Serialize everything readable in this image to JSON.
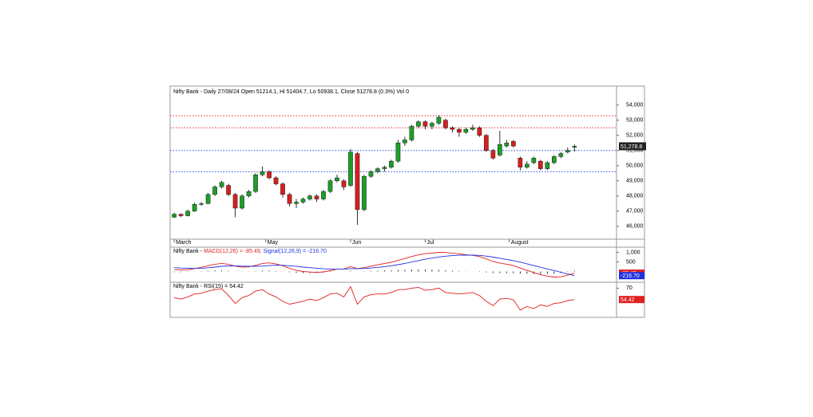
{
  "chart_data": [
    {
      "type": "candlestick",
      "title": "Nifty Bank - Daily 27/08/24 Open 51214.1, Hi 51404.7, Lo 50938.1, Close 51278.8 (0.3%) Vol 0",
      "xlim": [
        -0.6,
        65.2
      ],
      "xticks": [
        {
          "value": 0,
          "label": "March"
        },
        {
          "value": 13.5,
          "label": "May"
        },
        {
          "value": 26,
          "label": "Jun"
        },
        {
          "value": 37,
          "label": "Jul"
        },
        {
          "value": 49.4,
          "label": "August"
        }
      ],
      "ylim": [
        45150,
        55250
      ],
      "yticks": [
        {
          "value": 46000,
          "label": "46,000"
        },
        {
          "value": 47000,
          "label": "47,000"
        },
        {
          "value": 48000,
          "label": "48,000"
        },
        {
          "value": 49000,
          "label": "49,000"
        },
        {
          "value": 50000,
          "label": "50,000"
        },
        {
          "value": 51000,
          "label": "51,000"
        },
        {
          "value": 52000,
          "label": "52,000"
        },
        {
          "value": 53000,
          "label": "53,000"
        },
        {
          "value": 54000,
          "label": "54,000"
        }
      ],
      "up_color": "#1e9e2a",
      "down_color": "#d42020",
      "open": [
        46600,
        46800,
        46700,
        47000,
        47450,
        47500,
        48100,
        48600,
        48700,
        48100,
        47200,
        48000,
        48300,
        49400,
        49600,
        49200,
        48800,
        48100,
        47500,
        47600,
        47800,
        48000,
        47800,
        48300,
        49000,
        49000,
        48700,
        50800,
        47100,
        49300,
        49600,
        49800,
        49900,
        50300,
        51500,
        51700,
        52600,
        52900,
        52600,
        52800,
        53000,
        52500,
        52400,
        52200,
        52400,
        52500,
        52000,
        51000,
        50700,
        51300,
        51600,
        50500,
        49900,
        50200,
        50300,
        49800,
        50200,
        50600,
        50900,
        51214.1
      ],
      "high": [
        46900,
        46850,
        47100,
        47550,
        47600,
        48200,
        48700,
        49000,
        48800,
        48200,
        48100,
        48400,
        49500,
        49950,
        49700,
        49300,
        48900,
        48200,
        47800,
        47900,
        48100,
        48100,
        48400,
        49100,
        49400,
        49100,
        51100,
        50900,
        49400,
        49700,
        49900,
        50000,
        50400,
        51700,
        51900,
        52700,
        53000,
        53000,
        52900,
        53350,
        53100,
        52600,
        52500,
        52500,
        52700,
        52600,
        52100,
        51100,
        52300,
        51700,
        51700,
        50600,
        50300,
        50600,
        50400,
        50300,
        50700,
        50900,
        51200,
        51404.7
      ],
      "low": [
        46550,
        46600,
        46650,
        46950,
        47350,
        47450,
        48000,
        48500,
        48000,
        46600,
        47100,
        47900,
        48200,
        49300,
        49100,
        48700,
        47900,
        47300,
        47200,
        47500,
        47700,
        47600,
        47700,
        48200,
        48900,
        48400,
        48600,
        46100,
        47000,
        49200,
        49500,
        49600,
        49800,
        50200,
        51300,
        51600,
        52500,
        52400,
        52400,
        52700,
        52400,
        52200,
        51900,
        52100,
        52300,
        51900,
        50900,
        50400,
        50600,
        51200,
        51200,
        49700,
        49800,
        50100,
        49700,
        49700,
        50100,
        50500,
        50800,
        50938.1
      ],
      "close": [
        46800,
        46700,
        47000,
        47450,
        47500,
        48100,
        48600,
        48900,
        48100,
        47200,
        48000,
        48300,
        49400,
        49600,
        49200,
        48800,
        48100,
        47500,
        47600,
        47800,
        48000,
        47800,
        48300,
        49000,
        49200,
        48600,
        50900,
        47100,
        49300,
        49600,
        49800,
        49900,
        50300,
        51500,
        51700,
        52600,
        52900,
        52600,
        52800,
        53200,
        52500,
        52400,
        52200,
        52400,
        52500,
        52000,
        51000,
        50500,
        51400,
        51500,
        51300,
        49900,
        50100,
        50500,
        49800,
        50200,
        50600,
        50800,
        51000,
        51278.8
      ],
      "last_price_label": "51,278.8",
      "hlines": [
        {
          "value": 53300,
          "color": "#e03030"
        },
        {
          "value": 52500,
          "color": "#e03030"
        },
        {
          "value": 51000,
          "color": "#3050e0"
        },
        {
          "value": 49600,
          "color": "#3050e0"
        }
      ]
    },
    {
      "type": "macd",
      "title": "Nifty Bank - ",
      "xlim": [
        -0.6,
        65.2
      ],
      "ylim": [
        -520,
        1270
      ],
      "yticks": [
        {
          "value": 1000,
          "label": "1,000"
        },
        500
      ],
      "series": [
        {
          "name": "MACD(12,26) = -85.49,",
          "color": "#e02020",
          "last_label": "-85.49",
          "values": [
            100,
            80,
            90,
            150,
            220,
            300,
            380,
            420,
            380,
            280,
            230,
            240,
            320,
            420,
            450,
            400,
            300,
            170,
            60,
            0,
            -30,
            -50,
            -20,
            40,
            120,
            130,
            260,
            150,
            200,
            280,
            350,
            420,
            480,
            580,
            680,
            780,
            870,
            930,
            960,
            1000,
            990,
            960,
            920,
            880,
            840,
            780,
            660,
            520,
            440,
            380,
            310,
            180,
            60,
            -60,
            -160,
            -240,
            -290,
            -280,
            -190,
            -85.49
          ]
        },
        {
          "name": "Signal(12,26,9) = -216.70",
          "color": "#2030e0",
          "last_label": "-216.70",
          "values": [
            200,
            180,
            165,
            160,
            170,
            195,
            230,
            270,
            290,
            290,
            280,
            270,
            270,
            285,
            310,
            330,
            325,
            300,
            265,
            230,
            200,
            170,
            140,
            120,
            120,
            120,
            150,
            150,
            160,
            185,
            215,
            255,
            300,
            355,
            420,
            490,
            565,
            640,
            700,
            760,
            800,
            830,
            850,
            855,
            855,
            840,
            805,
            750,
            690,
            630,
            565,
            490,
            400,
            310,
            220,
            130,
            50,
            -40,
            -130,
            -216.7
          ]
        }
      ],
      "histogram_color": "#000000",
      "histogram": [
        -100,
        -100,
        -75,
        -10,
        50,
        105,
        150,
        150,
        90,
        -10,
        -50,
        -30,
        50,
        135,
        140,
        70,
        -25,
        -130,
        -205,
        -230,
        -230,
        -220,
        -160,
        -80,
        0,
        10,
        110,
        0,
        40,
        95,
        135,
        165,
        180,
        225,
        260,
        290,
        305,
        290,
        260,
        240,
        190,
        130,
        70,
        25,
        -15,
        -60,
        -145,
        -230,
        -250,
        -250,
        -255,
        -310,
        -340,
        -370,
        -380,
        -370,
        -340,
        -240,
        -60,
        131.21
      ]
    },
    {
      "type": "line",
      "title": "Nifty Bank - RSI(15) = 54.42",
      "xlim": [
        -0.6,
        65.2
      ],
      "ylim": [
        30,
        77
      ],
      "yticks": [
        70
      ],
      "series": [
        {
          "color": "#e02020",
          "last_label": "54.42",
          "values": [
            57,
            55,
            58,
            62,
            63,
            66,
            68,
            69,
            60,
            49,
            57,
            60,
            66,
            68,
            62,
            58,
            52,
            48,
            50,
            52,
            55,
            53,
            57,
            62,
            63,
            58,
            72,
            48,
            58,
            61,
            62,
            62,
            64,
            68,
            68,
            70,
            71,
            67,
            68,
            70,
            64,
            63,
            62,
            63,
            64,
            60,
            52,
            46,
            55,
            56,
            54,
            40,
            45,
            42,
            47,
            45,
            49,
            50,
            53,
            54.42
          ]
        }
      ]
    }
  ]
}
